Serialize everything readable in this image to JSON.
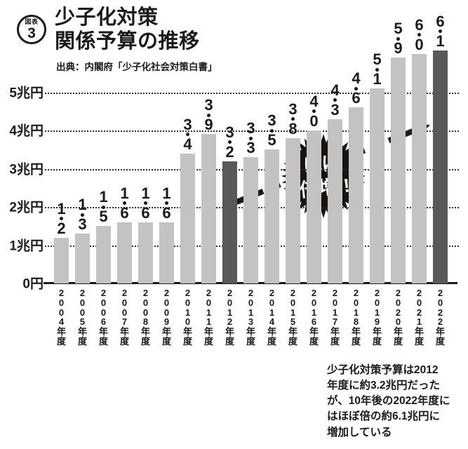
{
  "figure_label": {
    "prefix": "図表",
    "number": "3"
  },
  "title": "少子化対策\n関係予算の推移",
  "source": "出典：内閣府「少子化社会対策白書」",
  "badge": {
    "line1": "ほぼ",
    "line2": "倍増!!"
  },
  "caption": "少子化対策予算は2012\n年度に約3.2兆円だった\nが、10年後の2022年度に\nはほぼ倍の約6.1兆円に\n増加している",
  "colors": {
    "bar": "#c3c3c3",
    "highlight_bar": "#595959",
    "ink": "#1a1a1a",
    "badge_bg": "#161311",
    "badge_text": "#ffffff"
  },
  "chart_data": {
    "type": "bar",
    "title": "少子化対策関係予算の推移",
    "unit": "兆円",
    "categories": [
      "2004年度",
      "2005年度",
      "2006年度",
      "2007年度",
      "2008年度",
      "2009年度",
      "2010年度",
      "2011年度",
      "2012年度",
      "2013年度",
      "2014年度",
      "2015年度",
      "2016年度",
      "2017年度",
      "2018年度",
      "2019年度",
      "2020年度",
      "2021年度",
      "2022年度"
    ],
    "values": [
      1.2,
      1.3,
      1.5,
      1.6,
      1.6,
      1.6,
      3.4,
      3.9,
      3.2,
      3.3,
      3.5,
      3.8,
      4.0,
      4.3,
      4.6,
      5.1,
      5.9,
      6.0,
      6.1
    ],
    "highlight_indices": [
      8,
      18
    ],
    "y_ticks": [
      {
        "label": "5兆円",
        "value": 5
      },
      {
        "label": "4兆円",
        "value": 4
      },
      {
        "label": "3兆円",
        "value": 3
      },
      {
        "label": "2兆円",
        "value": 2
      },
      {
        "label": "1兆円",
        "value": 1
      },
      {
        "label": "0円",
        "value": 0
      }
    ],
    "ylim": [
      0,
      6.3
    ],
    "grid": "dotted-horizontal",
    "legend": "none",
    "annotation_badge": "ほぼ倍増!!"
  }
}
